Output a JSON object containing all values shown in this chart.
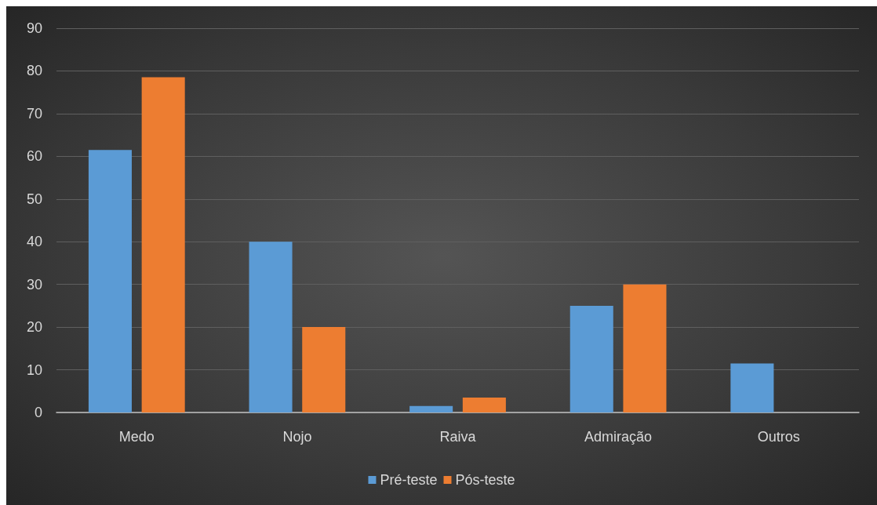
{
  "chart_data": {
    "type": "bar",
    "categories": [
      "Medo",
      "Nojo",
      "Raiva",
      "Admiração",
      "Outros"
    ],
    "series": [
      {
        "name": "Pré-teste",
        "color": "#5b9bd5",
        "values": [
          61.5,
          40,
          1.5,
          25,
          11.5
        ]
      },
      {
        "name": "Pós-teste",
        "color": "#ed7d31",
        "values": [
          78.5,
          20,
          3.5,
          30,
          0
        ]
      }
    ],
    "ylim": [
      0,
      90
    ],
    "yticks": [
      0,
      10,
      20,
      30,
      40,
      50,
      60,
      70,
      80,
      90
    ],
    "grid": "y",
    "legend": "bottom"
  }
}
